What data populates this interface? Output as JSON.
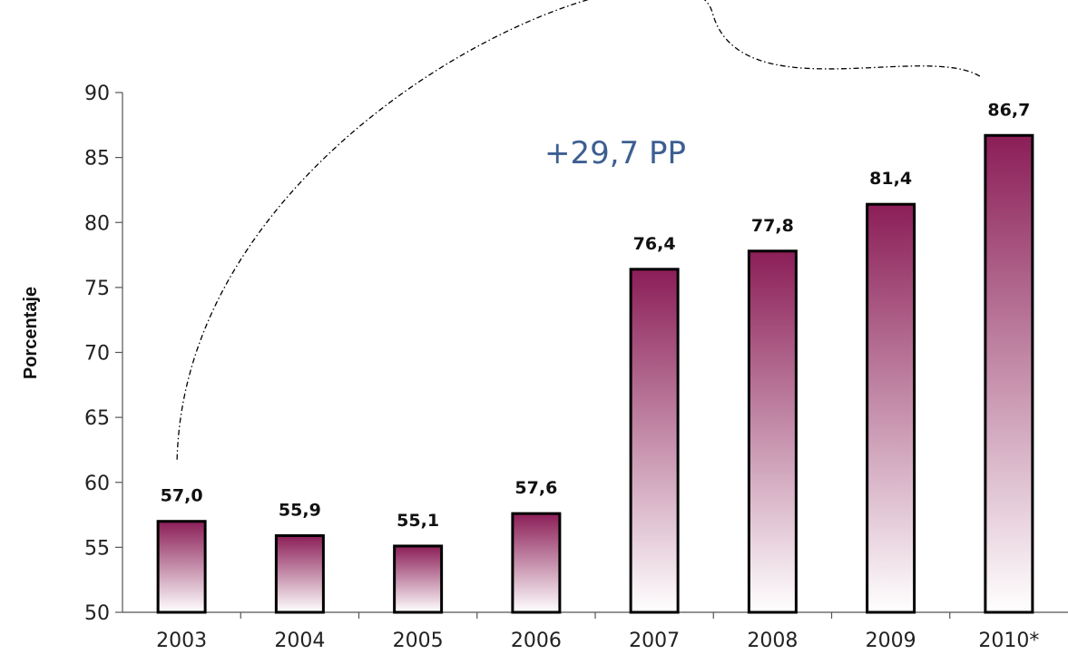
{
  "chart_data": {
    "type": "bar",
    "categories": [
      "2003",
      "2004",
      "2005",
      "2006",
      "2007",
      "2008",
      "2009",
      "2010*"
    ],
    "values": [
      57.0,
      55.9,
      55.1,
      57.6,
      76.4,
      77.8,
      81.4,
      86.7
    ],
    "value_labels": [
      "57,0",
      "55,9",
      "55,1",
      "57,6",
      "76,4",
      "77,8",
      "81,4",
      "86,7"
    ],
    "title": "",
    "xlabel": "",
    "ylabel": "Porcentaje",
    "ylim": [
      50,
      90
    ],
    "yticks": [
      50,
      55,
      60,
      65,
      70,
      75,
      80,
      85,
      90
    ],
    "grid": false,
    "annotation": {
      "text": "+29,7 PP",
      "from_category": "2003",
      "to_category": "2010*",
      "style": "dash-dot arc"
    },
    "colors": {
      "bar_top": "#8b1e57",
      "bar_bottom": "#ffffff",
      "bar_outline": "#000000",
      "annotation_text": "#3d5f91"
    }
  }
}
